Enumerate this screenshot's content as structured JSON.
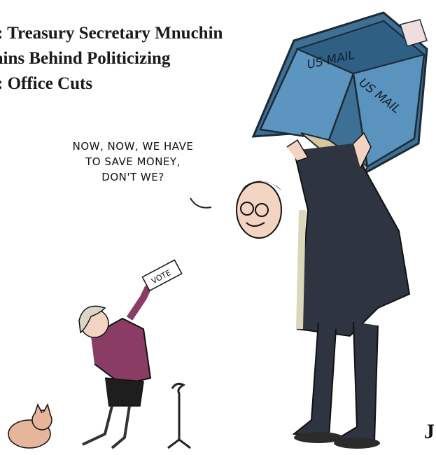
{
  "headline": {
    "line1": ": Treasury Secretary Mnuchin",
    "line2": "ains Behind Politicizing",
    "line3": ": Office Cuts"
  },
  "speech_balloon": {
    "line1": "NOW, NOW, WE HAVE",
    "line2": "TO SAVE MONEY,",
    "line3": "DON'T WE?"
  },
  "mailbox": {
    "label_left": "US MAIL",
    "label_right": "US MAIL"
  },
  "ballot": {
    "label": "VOTE"
  },
  "signature": {
    "mark": "J"
  },
  "colors": {
    "mailbox": "#4f87b0",
    "mailbox_dark": "#2f5f83",
    "suit": "#2e3440",
    "jacket": "#8a3c64",
    "dog": "#e7b59b",
    "face": "#f3d3c2"
  }
}
